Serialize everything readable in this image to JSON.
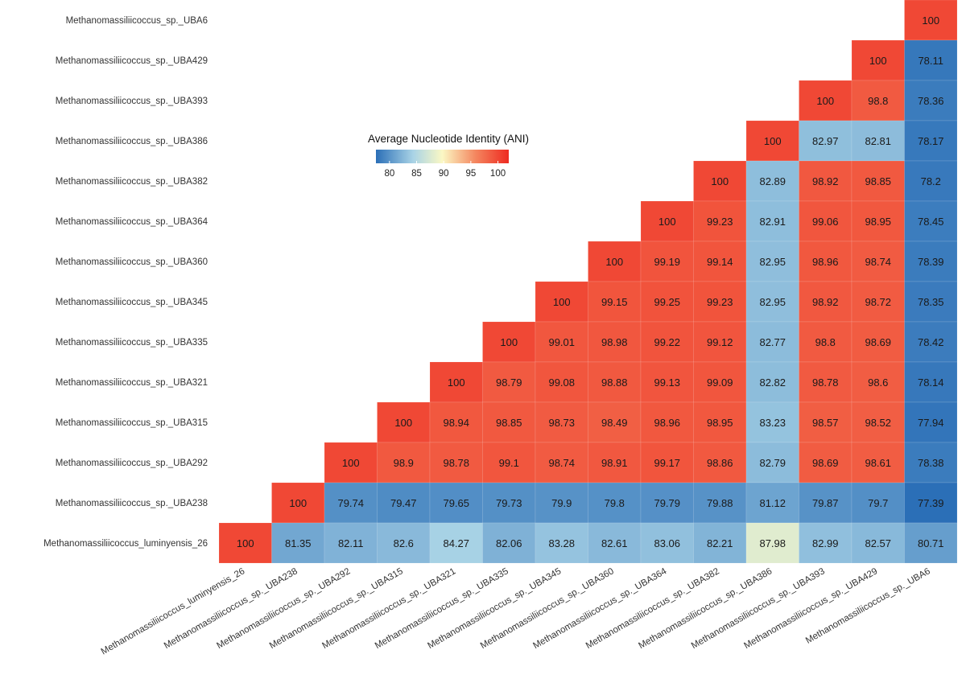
{
  "chart_data": {
    "type": "heatmap",
    "title": "",
    "legend": {
      "title": "Average Nucleotide Identity (ANI)",
      "min": 77.5,
      "max": 102,
      "ticks": [
        "80",
        "85",
        "90",
        "95",
        "100"
      ],
      "tick_values": [
        80,
        85,
        90,
        95,
        100
      ]
    },
    "rows": [
      "Methanomassiliicoccus_sp._UBA6",
      "Methanomassiliicoccus_sp._UBA429",
      "Methanomassiliicoccus_sp._UBA393",
      "Methanomassiliicoccus_sp._UBA386",
      "Methanomassiliicoccus_sp._UBA382",
      "Methanomassiliicoccus_sp._UBA364",
      "Methanomassiliicoccus_sp._UBA360",
      "Methanomassiliicoccus_sp._UBA345",
      "Methanomassiliicoccus_sp._UBA335",
      "Methanomassiliicoccus_sp._UBA321",
      "Methanomassiliicoccus_sp._UBA315",
      "Methanomassiliicoccus_sp._UBA292",
      "Methanomassiliicoccus_sp._UBA238",
      "Methanomassiliicoccus_luminyensis_26"
    ],
    "columns": [
      "Methanomassiliicoccus_luminyensis_26",
      "Methanomassiliicoccus_sp._UBA238",
      "Methanomassiliicoccus_sp._UBA292",
      "Methanomassiliicoccus_sp._UBA315",
      "Methanomassiliicoccus_sp._UBA321",
      "Methanomassiliicoccus_sp._UBA335",
      "Methanomassiliicoccus_sp._UBA345",
      "Methanomassiliicoccus_sp._UBA360",
      "Methanomassiliicoccus_sp._UBA364",
      "Methanomassiliicoccus_sp._UBA382",
      "Methanomassiliicoccus_sp._UBA386",
      "Methanomassiliicoccus_sp._UBA393",
      "Methanomassiliicoccus_sp._UBA429",
      "Methanomassiliicoccus_sp._UBA6"
    ],
    "values": [
      [
        null,
        null,
        null,
        null,
        null,
        null,
        null,
        null,
        null,
        null,
        null,
        null,
        null,
        "100"
      ],
      [
        null,
        null,
        null,
        null,
        null,
        null,
        null,
        null,
        null,
        null,
        null,
        null,
        "100",
        "78.11"
      ],
      [
        null,
        null,
        null,
        null,
        null,
        null,
        null,
        null,
        null,
        null,
        null,
        "100",
        "98.8",
        "78.36"
      ],
      [
        null,
        null,
        null,
        null,
        null,
        null,
        null,
        null,
        null,
        null,
        "100",
        "82.97",
        "82.81",
        "78.17"
      ],
      [
        null,
        null,
        null,
        null,
        null,
        null,
        null,
        null,
        null,
        "100",
        "82.89",
        "98.92",
        "98.85",
        "78.2"
      ],
      [
        null,
        null,
        null,
        null,
        null,
        null,
        null,
        null,
        "100",
        "99.23",
        "82.91",
        "99.06",
        "98.95",
        "78.45"
      ],
      [
        null,
        null,
        null,
        null,
        null,
        null,
        null,
        "100",
        "99.19",
        "99.14",
        "82.95",
        "98.96",
        "98.74",
        "78.39"
      ],
      [
        null,
        null,
        null,
        null,
        null,
        null,
        "100",
        "99.15",
        "99.25",
        "99.23",
        "82.95",
        "98.92",
        "98.72",
        "78.35"
      ],
      [
        null,
        null,
        null,
        null,
        null,
        "100",
        "99.01",
        "98.98",
        "99.22",
        "99.12",
        "82.77",
        "98.8",
        "98.69",
        "78.42"
      ],
      [
        null,
        null,
        null,
        null,
        "100",
        "98.79",
        "99.08",
        "98.88",
        "99.13",
        "99.09",
        "82.82",
        "98.78",
        "98.6",
        "78.14"
      ],
      [
        null,
        null,
        null,
        "100",
        "98.94",
        "98.85",
        "98.73",
        "98.49",
        "98.96",
        "98.95",
        "83.23",
        "98.57",
        "98.52",
        "77.94"
      ],
      [
        null,
        null,
        "100",
        "98.9",
        "98.78",
        "99.1",
        "98.74",
        "98.91",
        "99.17",
        "98.86",
        "82.79",
        "98.69",
        "98.61",
        "78.38"
      ],
      [
        null,
        "100",
        "79.74",
        "79.47",
        "79.65",
        "79.73",
        "79.9",
        "79.8",
        "79.79",
        "79.88",
        "81.12",
        "79.87",
        "79.7",
        "77.39"
      ],
      [
        "100",
        "81.35",
        "82.11",
        "82.6",
        "84.27",
        "82.06",
        "83.28",
        "82.61",
        "83.06",
        "82.21",
        "87.98",
        "82.99",
        "82.57",
        "80.71"
      ]
    ],
    "colors": {
      "low": "#2b6fb7",
      "mid_low": "#a9d3e6",
      "mid": "#fbf8c4",
      "mid_high": "#f4865f",
      "high": "#ee2a20"
    }
  }
}
